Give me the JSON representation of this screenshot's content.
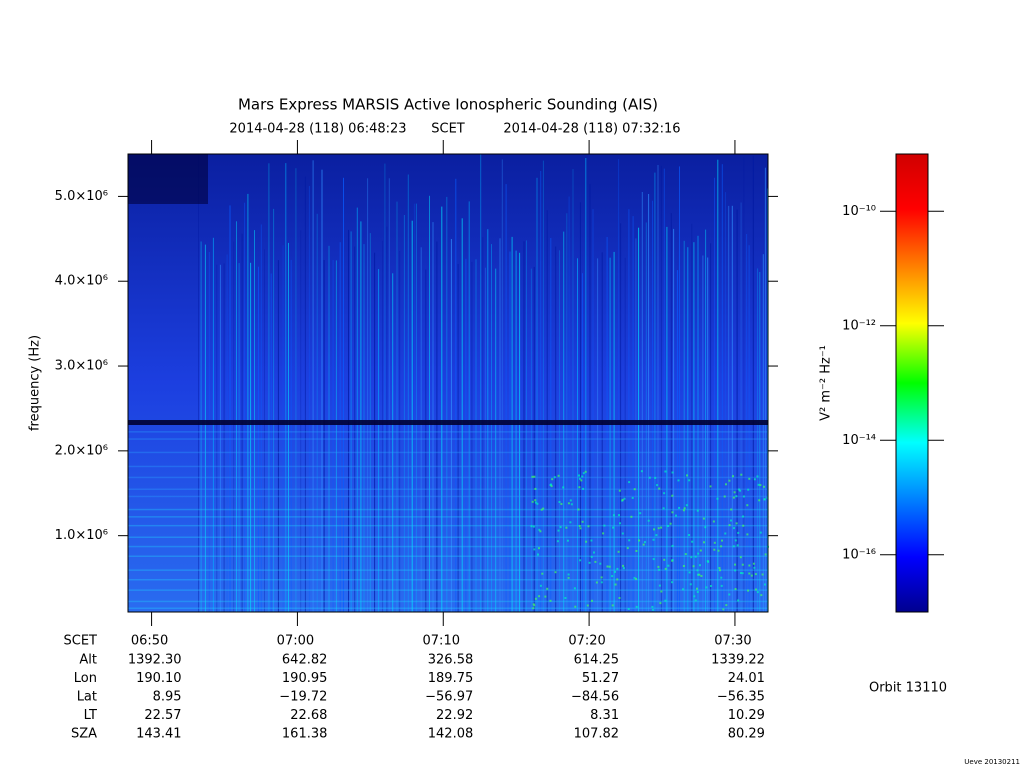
{
  "chart_data": {
    "type": "spectrogram",
    "title": "Mars Express MARSIS Active Ionospheric Sounding (AIS)",
    "time_start": "2014-04-28 (118) 06:48:23",
    "time_system": "SCET",
    "time_end": "2014-04-28 (118) 07:32:16",
    "ylabel": "frequency (Hz)",
    "ylim": [
      100000,
      5500000
    ],
    "yticks": [
      {
        "value": 1000000,
        "label": "1.0×10⁶"
      },
      {
        "value": 2000000,
        "label": "2.0×10⁶"
      },
      {
        "value": 3000000,
        "label": "3.0×10⁶"
      },
      {
        "value": 4000000,
        "label": "4.0×10⁶"
      },
      {
        "value": 5000000,
        "label": "5.0×10⁶"
      }
    ],
    "xlabel": "SCET",
    "xlim": [
      408.383,
      452.267
    ],
    "xticks": [
      {
        "value": 410,
        "label": "06:50"
      },
      {
        "value": 420,
        "label": "07:00"
      },
      {
        "value": 430,
        "label": "07:10"
      },
      {
        "value": 440,
        "label": "07:20"
      },
      {
        "value": 450,
        "label": "07:30"
      }
    ],
    "ephemeris": [
      {
        "name": "Alt",
        "values": [
          "1392.30",
          "642.82",
          "326.58",
          "614.25",
          "1339.22"
        ]
      },
      {
        "name": "Lon",
        "values": [
          "190.10",
          "190.95",
          "189.75",
          "51.27",
          "24.01"
        ]
      },
      {
        "name": "Lat",
        "values": [
          "8.95",
          "−19.72",
          "−56.97",
          "−84.56",
          "−56.35"
        ]
      },
      {
        "name": "LT",
        "values": [
          "22.57",
          "22.68",
          "22.92",
          "8.31",
          "10.29"
        ]
      },
      {
        "name": "SZA",
        "values": [
          "143.41",
          "161.38",
          "142.08",
          "107.82",
          "80.29"
        ]
      }
    ],
    "colorbar": {
      "label": "V² m⁻² Hz⁻¹",
      "log_scale": true,
      "clim": [
        1e-17,
        1e-09
      ],
      "ticks": [
        {
          "value": 1e-10,
          "label": "10⁻¹⁰"
        },
        {
          "value": 1e-12,
          "label": "10⁻¹²"
        },
        {
          "value": 1e-14,
          "label": "10⁻¹⁴"
        },
        {
          "value": 1e-16,
          "label": "10⁻¹⁶"
        }
      ]
    },
    "orbit": "Orbit 13110",
    "version": "Ueve 20130211"
  }
}
